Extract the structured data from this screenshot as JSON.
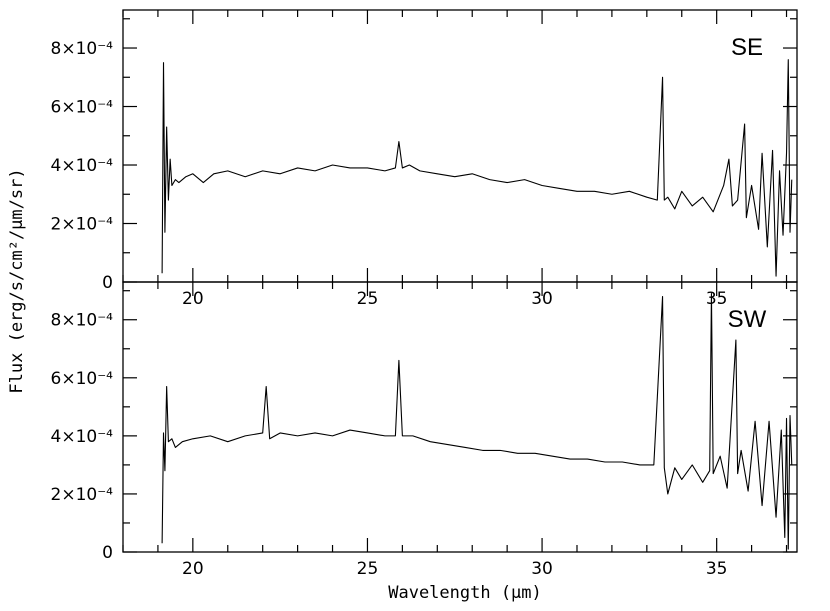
{
  "chart_data": {
    "type": "line",
    "xlabel": "Wavelength (μm)",
    "ylabel": "Flux (erg/s/cm²/μm/sr)",
    "xlim": [
      18.0,
      37.3
    ],
    "x_ticks": [
      "20",
      "25",
      "30",
      "35"
    ],
    "panels": [
      {
        "name": "SE",
        "ylim": [
          0,
          0.00093
        ],
        "y_ticks": [
          "8×10⁻⁴",
          "6×10⁻⁴",
          "4×10⁻⁴",
          "2×10⁻⁴",
          "0"
        ],
        "x": [
          19.12,
          19.16,
          19.2,
          19.25,
          19.3,
          19.35,
          19.4,
          19.5,
          19.6,
          19.8,
          20.0,
          20.3,
          20.6,
          21.0,
          21.5,
          22.0,
          22.5,
          23.0,
          23.5,
          24.0,
          24.5,
          25.0,
          25.5,
          25.8,
          25.9,
          26.0,
          26.2,
          26.5,
          27.0,
          27.5,
          28.0,
          28.5,
          29.0,
          29.5,
          30.0,
          30.5,
          31.0,
          31.5,
          32.0,
          32.5,
          33.0,
          33.3,
          33.45,
          33.5,
          33.6,
          33.8,
          34.0,
          34.3,
          34.6,
          34.9,
          35.2,
          35.35,
          35.45,
          35.6,
          35.8,
          35.85,
          36.0,
          36.2,
          36.3,
          36.45,
          36.6,
          36.7,
          36.8,
          36.9,
          37.0,
          37.05,
          37.1,
          37.15
        ],
        "y": [
          3e-05,
          0.00075,
          0.00017,
          0.00053,
          0.00028,
          0.00042,
          0.00033,
          0.00035,
          0.00034,
          0.00036,
          0.00037,
          0.00034,
          0.00037,
          0.00038,
          0.00036,
          0.00038,
          0.00037,
          0.00039,
          0.00038,
          0.0004,
          0.00039,
          0.00039,
          0.00038,
          0.00039,
          0.00048,
          0.00039,
          0.0004,
          0.00038,
          0.00037,
          0.00036,
          0.00037,
          0.00035,
          0.00034,
          0.00035,
          0.00033,
          0.00032,
          0.00031,
          0.00031,
          0.0003,
          0.00031,
          0.00029,
          0.00028,
          0.0007,
          0.00028,
          0.00029,
          0.00025,
          0.00031,
          0.00026,
          0.00029,
          0.00024,
          0.00033,
          0.00042,
          0.00026,
          0.00028,
          0.00054,
          0.00022,
          0.00033,
          0.00018,
          0.00044,
          0.00012,
          0.00045,
          2e-05,
          0.00038,
          0.00016,
          0.00044,
          0.00076,
          0.00017,
          0.00035
        ]
      },
      {
        "name": "SW",
        "ylim": [
          0,
          0.00093
        ],
        "y_ticks": [
          "8×10⁻⁴",
          "6×10⁻⁴",
          "4×10⁻⁴",
          "2×10⁻⁴",
          "0"
        ],
        "x": [
          19.12,
          19.16,
          19.2,
          19.25,
          19.3,
          19.4,
          19.5,
          19.7,
          20.0,
          20.5,
          21.0,
          21.5,
          22.0,
          22.1,
          22.2,
          22.5,
          23.0,
          23.5,
          24.0,
          24.5,
          25.0,
          25.5,
          25.8,
          25.9,
          26.0,
          26.3,
          26.8,
          27.3,
          27.8,
          28.3,
          28.8,
          29.3,
          29.8,
          30.3,
          30.8,
          31.3,
          31.8,
          32.3,
          32.8,
          33.2,
          33.45,
          33.5,
          33.6,
          33.8,
          34.0,
          34.3,
          34.6,
          34.8,
          34.85,
          34.9,
          35.1,
          35.3,
          35.55,
          35.6,
          35.7,
          35.9,
          36.1,
          36.3,
          36.5,
          36.7,
          36.85,
          36.95,
          37.0,
          37.05,
          37.1,
          37.15
        ],
        "y": [
          3e-05,
          0.00041,
          0.00028,
          0.00057,
          0.00038,
          0.00039,
          0.00036,
          0.00038,
          0.00039,
          0.0004,
          0.00038,
          0.0004,
          0.00041,
          0.00057,
          0.00039,
          0.00041,
          0.0004,
          0.00041,
          0.0004,
          0.00042,
          0.00041,
          0.0004,
          0.0004,
          0.00066,
          0.0004,
          0.0004,
          0.00038,
          0.00037,
          0.00036,
          0.00035,
          0.00035,
          0.00034,
          0.00034,
          0.00033,
          0.00032,
          0.00032,
          0.00031,
          0.00031,
          0.0003,
          0.0003,
          0.00088,
          0.00029,
          0.0002,
          0.00029,
          0.00025,
          0.0003,
          0.00024,
          0.00028,
          0.00089,
          0.00027,
          0.00033,
          0.00022,
          0.00073,
          0.00027,
          0.00035,
          0.00021,
          0.00045,
          0.00016,
          0.00045,
          0.00012,
          0.00042,
          5e-05,
          0.00046,
          1e-05,
          0.00047,
          0.0003
        ]
      }
    ]
  }
}
